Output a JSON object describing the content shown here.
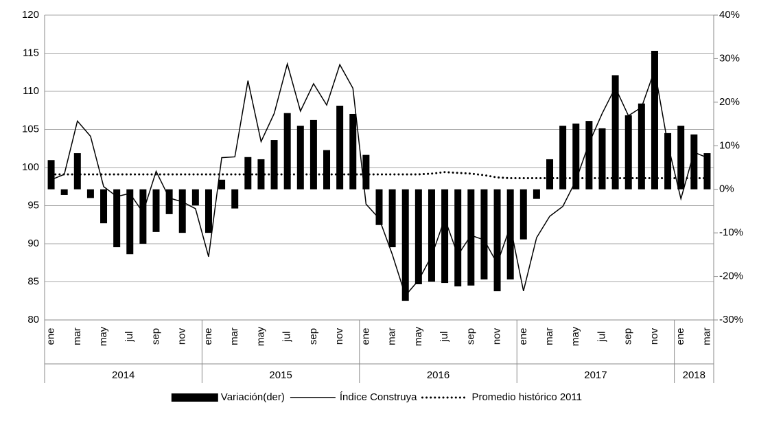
{
  "chart_data": {
    "type": "bar_line",
    "categories": [
      "ene",
      null,
      "mar",
      null,
      "may",
      null,
      "jul",
      null,
      "sep",
      null,
      "nov",
      null,
      "ene",
      null,
      "mar",
      null,
      "may",
      null,
      "jul",
      null,
      "sep",
      null,
      "nov",
      null,
      "ene",
      null,
      "mar",
      null,
      "may",
      null,
      "jul",
      null,
      "sep",
      null,
      "nov",
      null,
      "ene",
      null,
      "mar",
      null,
      "may",
      null,
      "jul",
      null,
      "sep",
      null,
      "nov",
      null,
      "ene",
      null,
      "mar"
    ],
    "years": [
      "2014",
      "2015",
      "2016",
      "2017",
      "2018"
    ],
    "ylim": [
      80,
      120
    ],
    "yticks": [
      80,
      85,
      90,
      95,
      100,
      105,
      110,
      115,
      120
    ],
    "y2lim": [
      -30,
      40
    ],
    "y2ticks": [
      {
        "value": -30,
        "label": "-30%"
      },
      {
        "value": -20,
        "label": "-20%"
      },
      {
        "value": -10,
        "label": "-10%"
      },
      {
        "value": 0,
        "label": "0%"
      },
      {
        "value": 10,
        "label": "10%"
      },
      {
        "value": 20,
        "label": "20%"
      },
      {
        "value": 30,
        "label": "30%"
      },
      {
        "value": 40,
        "label": "40%"
      }
    ],
    "grid": true,
    "legend": "bottom",
    "series": [
      {
        "name": "Variación(der)",
        "type": "bar",
        "axis": "y2",
        "color": "#000000",
        "values": [
          6.7,
          -1.3,
          8.3,
          -2,
          -7.8,
          -13.3,
          -14.9,
          -12.5,
          -9.8,
          -5.7,
          -10,
          -3.7,
          -10,
          2.2,
          -4.4,
          7.4,
          6.9,
          11.3,
          17.5,
          14.6,
          15.9,
          9,
          19.2,
          17.3,
          7.9,
          -8.2,
          -13.3,
          -25.6,
          -21.8,
          -21.2,
          -21.5,
          -22.3,
          -22.1,
          -20.7,
          -23.4,
          -20.7,
          -11.5,
          -2.2,
          6.9,
          14.6,
          15.1,
          15.7,
          14,
          26.2,
          17,
          19.7,
          31.8,
          12.9,
          14.6,
          12.6,
          8.3
        ]
      },
      {
        "name": "Índice Construya",
        "type": "line",
        "color": "#000000",
        "dash": "solid",
        "values": [
          98.4,
          99.1,
          106.1,
          104.1,
          97.5,
          96.2,
          96.6,
          94.1,
          99.5,
          96.0,
          95.5,
          94.6,
          88.3,
          101.3,
          101.4,
          111.4,
          103.4,
          107.1,
          113.6,
          107.4,
          111,
          108.2,
          113.5,
          110.4,
          95.2,
          93.3,
          88.6,
          83.2,
          85.2,
          88.4,
          93.3,
          88.5,
          91.1,
          90.5,
          87.4,
          92.3,
          83.8,
          90.8,
          93.6,
          94.9,
          98.3,
          103.2,
          107.1,
          110.5,
          106.8,
          107.9,
          112.8,
          103.1,
          95.9,
          102,
          101.3
        ]
      },
      {
        "name": "Promedio histórico 2011",
        "type": "line",
        "color": "#000000",
        "dash": "dotted",
        "values": [
          99.1,
          99.1,
          99.1,
          99.1,
          99.1,
          99.1,
          99.1,
          99.1,
          99.1,
          99.1,
          99.1,
          99.1,
          99.1,
          99.1,
          99.1,
          99.1,
          99.1,
          99.1,
          99.1,
          99.1,
          99.1,
          99.1,
          99.1,
          99.1,
          99.1,
          99.1,
          99.1,
          99.1,
          99.1,
          99.2,
          99.4,
          99.3,
          99.2,
          99.0,
          98.7,
          98.6,
          98.6,
          98.6,
          98.6,
          98.6,
          98.6,
          98.6,
          98.6,
          98.6,
          98.6,
          98.6,
          98.6,
          98.6,
          98.6,
          98.6,
          98.6
        ]
      }
    ]
  }
}
